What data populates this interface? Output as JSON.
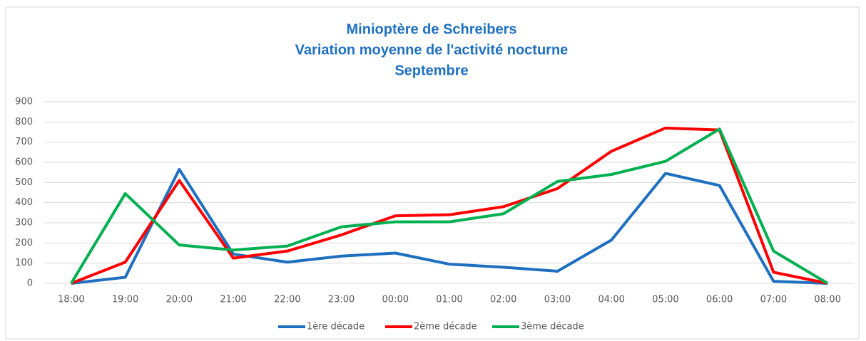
{
  "chart_data": {
    "type": "line",
    "title": [
      "Minioptère de Schreibers",
      "Variation moyenne de l'activité nocturne",
      "Septembre"
    ],
    "categories": [
      "18:00",
      "19:00",
      "20:00",
      "21:00",
      "22:00",
      "23:00",
      "00:00",
      "01:00",
      "02:00",
      "03:00",
      "04:00",
      "05:00",
      "06:00",
      "07:00",
      "08:00"
    ],
    "series": [
      {
        "name": "1ère décade",
        "color": "#1f6fc0",
        "values": [
          0,
          30,
          565,
          145,
          105,
          135,
          150,
          95,
          80,
          60,
          215,
          545,
          485,
          10,
          0
        ]
      },
      {
        "name": "2ème décade",
        "color": "#ff0000",
        "values": [
          0,
          105,
          510,
          125,
          160,
          240,
          335,
          340,
          380,
          470,
          655,
          770,
          760,
          55,
          0
        ]
      },
      {
        "name": "3ème décade",
        "color": "#00b050",
        "values": [
          0,
          445,
          190,
          165,
          185,
          280,
          305,
          305,
          345,
          505,
          540,
          605,
          765,
          160,
          0
        ]
      }
    ],
    "ylim": [
      0,
      900
    ],
    "yticks": [
      0,
      100,
      200,
      300,
      400,
      500,
      600,
      700,
      800,
      900
    ],
    "grid": true,
    "legend": "bottom"
  }
}
